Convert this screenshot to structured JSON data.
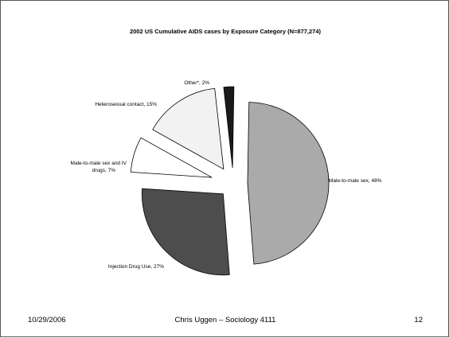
{
  "chart_data": {
    "type": "pie",
    "title": "2002 US Cumulative AIDS cases by Exposure Category (N=877,274)",
    "exploded": true,
    "slices": [
      {
        "label": "Male-to-male sex, 48%",
        "name": "Male-to-male sex",
        "value": 48,
        "color": "#aaaaaa"
      },
      {
        "label": "Injection Drug Use, 27%",
        "name": "Injection Drug Use",
        "value": 27,
        "color": "#4d4d4d"
      },
      {
        "label": "Male-to-male sex and IV drugs, 7%",
        "name": "Male-to-male sex and IV drugs",
        "value": 7,
        "color": "#ffffff"
      },
      {
        "label": "Heterosexual contact, 15%",
        "name": "Heterosexual contact",
        "value": 15,
        "color": "#f2f2f2"
      },
      {
        "label": "Other*, 2%",
        "name": "Other*",
        "value": 2,
        "color": "#1a1a1a"
      }
    ]
  },
  "footer": {
    "date": "10/29/2006",
    "author": "Chris Uggen – Sociology 4111",
    "page": "12"
  }
}
